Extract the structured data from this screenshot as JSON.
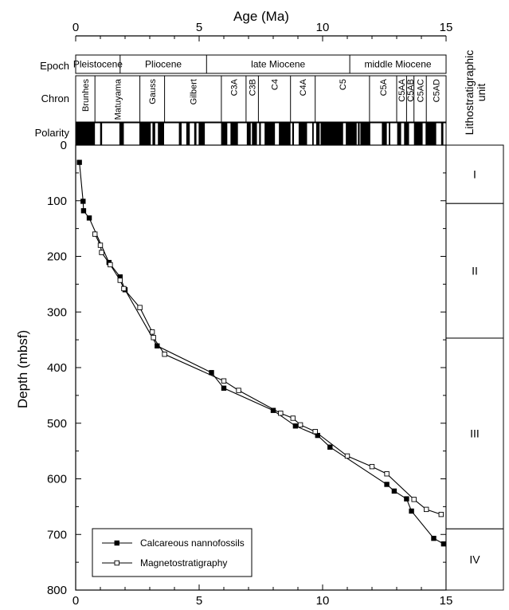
{
  "chart_data": {
    "type": "scatter",
    "xlabel": "Age (Ma)",
    "ylabel": "Depth (mbsf)",
    "xlim": [
      0,
      15
    ],
    "ylim": [
      0,
      800
    ],
    "x_ticks": [
      0,
      5,
      10,
      15
    ],
    "y_ticks": [
      0,
      100,
      200,
      300,
      400,
      500,
      600,
      700,
      800
    ],
    "y_inverted": true,
    "grid": false,
    "legend_position": "bottom-left",
    "series": [
      {
        "name": "Calcareous nannofossils",
        "marker": "filled-square",
        "points": [
          [
            0.15,
            31
          ],
          [
            0.3,
            101
          ],
          [
            0.32,
            118
          ],
          [
            0.55,
            131
          ],
          [
            1.35,
            211
          ],
          [
            1.8,
            237
          ],
          [
            2.0,
            260
          ],
          [
            3.3,
            361
          ],
          [
            5.5,
            409
          ],
          [
            6.0,
            437
          ],
          [
            8.0,
            477
          ],
          [
            8.9,
            505
          ],
          [
            9.8,
            522
          ],
          [
            10.3,
            543
          ],
          [
            12.6,
            610
          ],
          [
            12.9,
            622
          ],
          [
            13.4,
            636
          ],
          [
            13.6,
            658
          ],
          [
            14.5,
            707
          ],
          [
            14.9,
            717
          ]
        ]
      },
      {
        "name": "Magnetostratigraphy",
        "marker": "open-square",
        "points": [
          [
            0.78,
            160
          ],
          [
            1.0,
            180
          ],
          [
            1.05,
            193
          ],
          [
            1.4,
            215
          ],
          [
            1.8,
            243
          ],
          [
            1.95,
            258
          ],
          [
            2.6,
            292
          ],
          [
            3.1,
            336
          ],
          [
            3.15,
            346
          ],
          [
            3.6,
            376
          ],
          [
            6.0,
            424
          ],
          [
            6.6,
            441
          ],
          [
            8.3,
            482
          ],
          [
            8.8,
            491
          ],
          [
            9.1,
            503
          ],
          [
            9.7,
            515
          ],
          [
            11.0,
            559
          ],
          [
            12.0,
            578
          ],
          [
            12.6,
            591
          ],
          [
            13.7,
            637
          ],
          [
            14.2,
            655
          ],
          [
            14.8,
            664
          ]
        ]
      }
    ],
    "epoch": {
      "label": "Epoch",
      "bands": [
        {
          "name": "Pleistocene",
          "start": 0,
          "end": 1.8
        },
        {
          "name": "Pliocene",
          "start": 1.8,
          "end": 5.3
        },
        {
          "name": "late Miocene",
          "start": 5.3,
          "end": 11.1
        },
        {
          "name": "middle Miocene",
          "start": 11.1,
          "end": 15
        }
      ]
    },
    "chron": {
      "label": "Chron",
      "bands": [
        {
          "name": "Brunhes",
          "start": 0,
          "end": 0.78
        },
        {
          "name": "Matuyama",
          "start": 0.78,
          "end": 2.6
        },
        {
          "name": "Gauss",
          "start": 2.6,
          "end": 3.6
        },
        {
          "name": "Gilbert",
          "start": 3.6,
          "end": 5.9
        },
        {
          "name": "C3A",
          "start": 5.9,
          "end": 6.9
        },
        {
          "name": "C3B",
          "start": 6.9,
          "end": 7.4
        },
        {
          "name": "C4",
          "start": 7.4,
          "end": 8.7
        },
        {
          "name": "C4A",
          "start": 8.7,
          "end": 9.7
        },
        {
          "name": "C5",
          "start": 9.7,
          "end": 11.9
        },
        {
          "name": "C5A",
          "start": 11.9,
          "end": 13.0
        },
        {
          "name": "C5AA",
          "start": 13.0,
          "end": 13.4
        },
        {
          "name": "C5AB",
          "start": 13.4,
          "end": 13.7
        },
        {
          "name": "C5AC",
          "start": 13.7,
          "end": 14.2
        },
        {
          "name": "C5AD",
          "start": 14.2,
          "end": 15
        }
      ]
    },
    "polarity": {
      "label": "Polarity",
      "normal_intervals": [
        [
          0,
          0.78
        ],
        [
          0.99,
          1.07
        ],
        [
          1.77,
          1.95
        ],
        [
          2.58,
          3.04
        ],
        [
          3.11,
          3.22
        ],
        [
          3.33,
          3.58
        ],
        [
          4.18,
          4.29
        ],
        [
          4.48,
          4.62
        ],
        [
          4.8,
          4.89
        ],
        [
          4.98,
          5.23
        ],
        [
          5.89,
          6.14
        ],
        [
          6.27,
          6.57
        ],
        [
          6.93,
          7.09
        ],
        [
          7.14,
          7.34
        ],
        [
          7.43,
          7.5
        ],
        [
          7.65,
          8.07
        ],
        [
          8.23,
          8.7
        ],
        [
          8.77,
          8.84
        ],
        [
          9.03,
          9.37
        ],
        [
          9.58,
          9.64
        ],
        [
          9.74,
          9.88
        ],
        [
          9.92,
          10.83
        ],
        [
          10.94,
          11.38
        ],
        [
          11.43,
          11.5
        ],
        [
          11.53,
          11.93
        ],
        [
          12.4,
          12.6
        ],
        [
          12.68,
          12.74
        ],
        [
          13.02,
          13.18
        ],
        [
          13.3,
          13.5
        ],
        [
          13.7,
          14.05
        ],
        [
          14.17,
          14.6
        ],
        [
          14.8,
          14.89
        ]
      ]
    },
    "lithostratigraphic_unit": {
      "label": "Lithostratigraphic unit",
      "units": [
        {
          "name": "I",
          "top": 0,
          "bottom": 105
        },
        {
          "name": "II",
          "top": 105,
          "bottom": 347
        },
        {
          "name": "III",
          "top": 347,
          "bottom": 690
        },
        {
          "name": "IV",
          "top": 690,
          "bottom": 800
        }
      ]
    }
  }
}
